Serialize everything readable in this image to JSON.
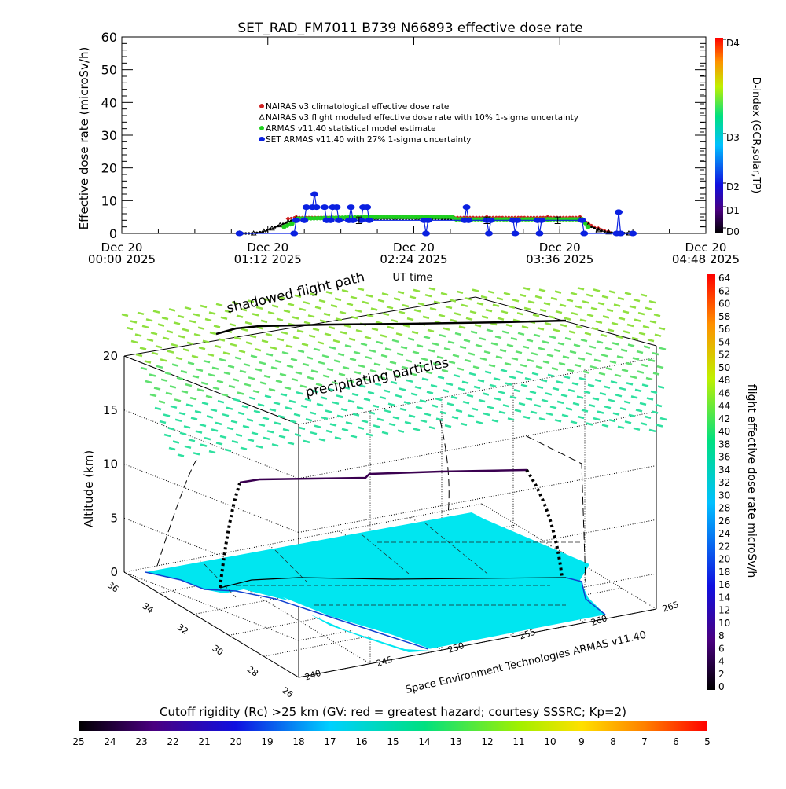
{
  "title": "SET_RAD_FM7011  B739 N66893 effective dose rate",
  "chart_data": [
    {
      "type": "line",
      "ylabel": "Effective dose rate (microSv/h)",
      "xlabel": "UT time",
      "ylim": [
        0,
        60
      ],
      "yticks": [
        "0",
        "10",
        "20",
        "30",
        "40",
        "50",
        "60"
      ],
      "xlim": [
        "00:00",
        "04:48"
      ],
      "xticks": [
        {
          "line1": "Dec 20",
          "line2": "00:00 2025",
          "t": "00:00"
        },
        {
          "line1": "Dec 20",
          "line2": "01:12 2025",
          "t": "01:12"
        },
        {
          "line1": "Dec 20",
          "line2": "02:24 2025",
          "t": "02:24"
        },
        {
          "line1": "Dec 20",
          "line2": "03:36 2025",
          "t": "03:36"
        },
        {
          "line1": "Dec 20",
          "line2": "04:48 2025",
          "t": "04:48"
        }
      ],
      "legend_placement": "center",
      "series": [
        {
          "name": "NAIRAS v3 climatological effective dose rate",
          "color": "#d02020",
          "marker": "diamond",
          "points": [
            [
              "01:22",
              4.5
            ],
            [
              "01:26",
              5
            ],
            [
              "02:00",
              5
            ],
            [
              "02:30",
              5
            ],
            [
              "03:00",
              5
            ],
            [
              "03:30",
              5
            ],
            [
              "03:46",
              5
            ],
            [
              "03:50",
              3
            ],
            [
              "03:55",
              1.5
            ],
            [
              "04:00",
              0.5
            ]
          ]
        },
        {
          "name": "NAIRAS v3 flight modeled effective dose rate with 10% 1-sigma uncertainty",
          "color": "#000000",
          "marker": "triangle",
          "points": [
            [
              "00:58",
              0
            ],
            [
              "01:05",
              0
            ],
            [
              "01:10",
              0.6
            ],
            [
              "01:14",
              1.5
            ],
            [
              "01:18",
              2.5
            ],
            [
              "01:22",
              3.5
            ],
            [
              "01:26",
              4.5
            ],
            [
              "02:00",
              4.5
            ],
            [
              "02:30",
              4.5
            ],
            [
              "03:00",
              4.3
            ],
            [
              "03:30",
              4.3
            ],
            [
              "03:46",
              4.3
            ],
            [
              "03:50",
              2.5
            ],
            [
              "03:55",
              1
            ],
            [
              "04:00",
              0.3
            ],
            [
              "04:10",
              0
            ]
          ]
        },
        {
          "name": "ARMAS v11.40 statistical model estimate",
          "color": "#20d020",
          "marker": "asterisk",
          "points": [
            [
              "01:20",
              2
            ],
            [
              "01:24",
              3
            ],
            [
              "01:27",
              4.5
            ],
            [
              "02:00",
              5
            ],
            [
              "02:20",
              5
            ],
            [
              "02:43",
              5
            ],
            [
              "02:45",
              4.3
            ],
            [
              "03:30",
              4.3
            ],
            [
              "03:47",
              4.3
            ],
            [
              "03:50",
              2
            ]
          ]
        },
        {
          "name": "SET ARMAS v11.40 with 27% 1-sigma uncertainty",
          "color": "#0a20e0",
          "marker": "circle",
          "points": [
            [
              "00:58",
              0
            ],
            [
              "01:25",
              0
            ],
            [
              "01:26",
              4
            ],
            [
              "01:30",
              4
            ],
            [
              "01:31",
              8
            ],
            [
              "01:34",
              8
            ],
            [
              "01:35",
              12
            ],
            [
              "01:36",
              8
            ],
            [
              "01:40",
              8
            ],
            [
              "01:41",
              4
            ],
            [
              "01:43",
              4
            ],
            [
              "01:44",
              8
            ],
            [
              "01:46",
              8
            ],
            [
              "01:47",
              4
            ],
            [
              "01:52",
              4
            ],
            [
              "01:53",
              8
            ],
            [
              "01:54",
              4
            ],
            [
              "01:58",
              4
            ],
            [
              "01:59",
              8
            ],
            [
              "02:01",
              8
            ],
            [
              "02:02",
              4
            ],
            [
              "02:29",
              4
            ],
            [
              "02:30",
              0
            ],
            [
              "02:31",
              4
            ],
            [
              "02:49",
              4
            ],
            [
              "02:50",
              8
            ],
            [
              "02:51",
              4
            ],
            [
              "03:00",
              4
            ],
            [
              "03:01",
              0
            ],
            [
              "03:02",
              4
            ],
            [
              "03:13",
              4
            ],
            [
              "03:14",
              0
            ],
            [
              "03:15",
              4
            ],
            [
              "03:25",
              4
            ],
            [
              "03:26",
              0
            ],
            [
              "03:27",
              4
            ],
            [
              "03:47",
              4
            ],
            [
              "03:48",
              0
            ],
            [
              "04:04",
              0
            ],
            [
              "04:05",
              6.5
            ],
            [
              "04:06",
              0
            ],
            [
              "04:12",
              0
            ]
          ]
        }
      ],
      "error_bars": [
        [
          "01:57",
          4,
          2
        ],
        [
          "03:00",
          4,
          2
        ],
        [
          "03:35",
          4,
          2
        ]
      ]
    },
    {
      "type": "colorbar",
      "ylabel": "D-index (GCR,solar,TP)",
      "ticks": [
        "D0",
        "D1",
        "D2",
        "D3",
        "D4"
      ]
    },
    {
      "type": "scatter",
      "zlabel": "Altitude (km)",
      "zticks": [
        "0",
        "5",
        "10",
        "15",
        "20"
      ],
      "lat_ticks": [
        "26",
        "28",
        "30",
        "32",
        "34",
        "36"
      ],
      "lon_ticks": [
        "240",
        "245",
        "250",
        "255",
        "260",
        "265"
      ],
      "annotations": [
        "shadowed flight path",
        "precipitating particles"
      ],
      "credit": "Space Environment Technologies ARMAS v11.40",
      "flight_altitude_km": [
        0,
        8.5,
        8.7,
        9.3,
        9.5,
        9.5,
        0
      ]
    },
    {
      "type": "colorbar",
      "ylabel": "flight effective dose rate microSv/h",
      "ticks": [
        "0",
        "2",
        "4",
        "6",
        "8",
        "10",
        "12",
        "14",
        "16",
        "18",
        "20",
        "22",
        "24",
        "26",
        "28",
        "30",
        "32",
        "34",
        "36",
        "38",
        "40",
        "42",
        "44",
        "46",
        "48",
        "50",
        "52",
        "54",
        "56",
        "58",
        "60",
        "62",
        "64"
      ]
    },
    {
      "type": "colorbar",
      "xlabel": "Cutoff rigidity (Rc) >25 km (GV: red = greatest hazard; courtesy SSSRC; Kp=2)",
      "ticks": [
        "25",
        "24",
        "23",
        "22",
        "21",
        "20",
        "19",
        "18",
        "17",
        "16",
        "15",
        "14",
        "13",
        "12",
        "11",
        "10",
        "9",
        "8",
        "7",
        "6",
        "5"
      ]
    }
  ]
}
